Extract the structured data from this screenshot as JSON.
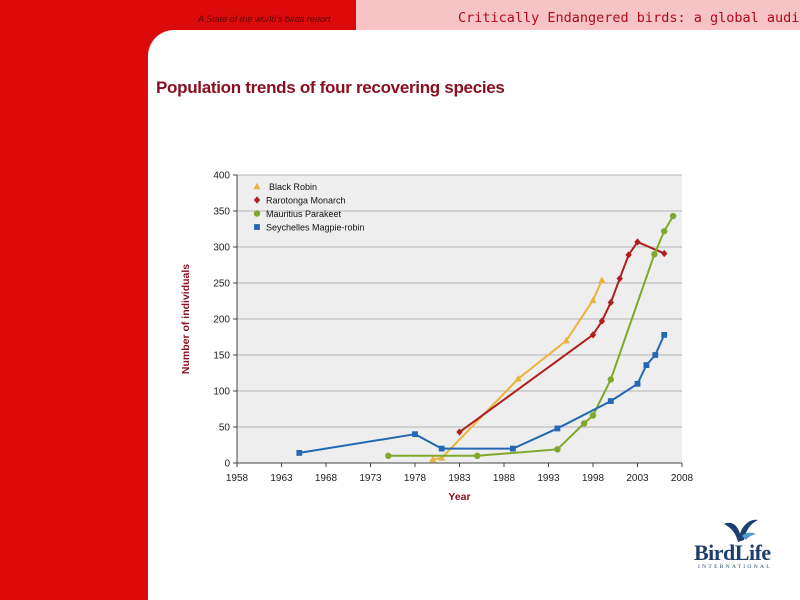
{
  "header": {
    "subtitle": "A State of the world's birds report",
    "report_title": "Critically Endangered birds: a global audit"
  },
  "page_title": "Population trends of four recovering species",
  "logo": {
    "word": "BirdLife",
    "sub": "INTERNATIONAL"
  },
  "colors": {
    "primary_red": "#dc0a0a",
    "pink": "#f6c4c4",
    "title_red": "#8a1020",
    "logo_blue": "#1e3f6e"
  },
  "chart_data": {
    "type": "line",
    "title": "",
    "xlabel": "Year",
    "ylabel": "Number of individuals",
    "xlim": [
      1958,
      2008
    ],
    "ylim": [
      0,
      400
    ],
    "x_ticks": [
      1958,
      1963,
      1968,
      1973,
      1978,
      1983,
      1988,
      1993,
      1998,
      2003,
      2008
    ],
    "y_ticks": [
      0,
      50,
      100,
      150,
      200,
      250,
      300,
      350,
      400
    ],
    "grid": "horizontal",
    "legend_position": "top-left",
    "series": [
      {
        "name": "Black Robin",
        "color": "#e8b43c",
        "marker": "triangle",
        "points": [
          [
            1980,
            5
          ],
          [
            1981,
            7
          ],
          [
            1989.6,
            117
          ],
          [
            1995,
            170
          ],
          [
            1998,
            226
          ],
          [
            1999,
            254
          ]
        ]
      },
      {
        "name": "Rarotonga Monarch",
        "color": "#b01e1e",
        "marker": "diamond",
        "points": [
          [
            1983,
            43
          ],
          [
            1998,
            178
          ],
          [
            1999,
            197
          ],
          [
            2000,
            223
          ],
          [
            2001,
            256
          ],
          [
            2002,
            289
          ],
          [
            2003,
            307
          ],
          [
            2006,
            291
          ]
        ]
      },
      {
        "name": "Mauritius Parakeet",
        "color": "#7fa82c",
        "marker": "circle",
        "points": [
          [
            1975,
            10
          ],
          [
            1985,
            10
          ],
          [
            1994,
            19
          ],
          [
            1997,
            55
          ],
          [
            1998,
            66
          ],
          [
            2000,
            116
          ],
          [
            2004.9,
            290
          ],
          [
            2006,
            322
          ],
          [
            2007,
            343
          ]
        ]
      },
      {
        "name": "Seychelles Magpie-robin",
        "color": "#2468b4",
        "marker": "square",
        "points": [
          [
            1965,
            14
          ],
          [
            1978,
            40
          ],
          [
            1981,
            20
          ],
          [
            1989,
            20
          ],
          [
            1994,
            48
          ],
          [
            2000,
            86
          ],
          [
            2003,
            110
          ],
          [
            2004,
            136
          ],
          [
            2005,
            150
          ],
          [
            2006,
            178
          ]
        ]
      }
    ]
  }
}
